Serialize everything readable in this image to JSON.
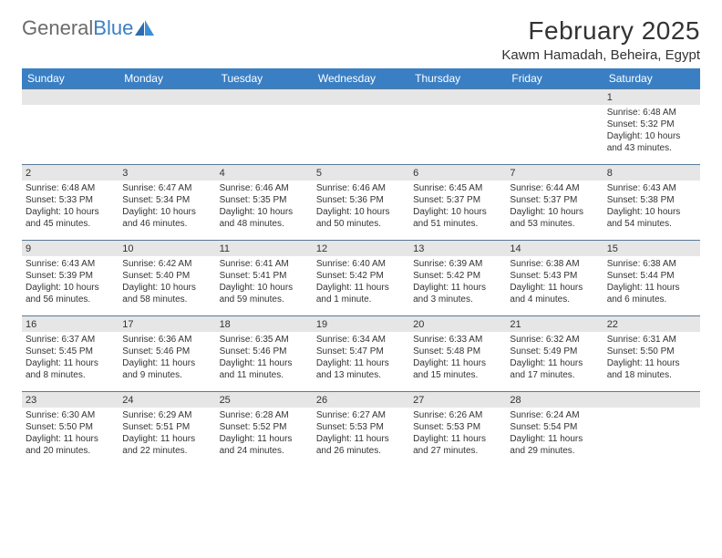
{
  "logo": {
    "text1": "General",
    "text2": "Blue"
  },
  "title": "February 2025",
  "location": "Kawm Hamadah, Beheira, Egypt",
  "colors": {
    "header_bg": "#3a7fc4",
    "header_text": "#ffffff",
    "daynum_bg": "#e6e6e6",
    "border": "#5a7a99",
    "body_text": "#333333",
    "logo_gray": "#6b6b6b",
    "logo_blue": "#3a7fc4"
  },
  "weekdays": [
    "Sunday",
    "Monday",
    "Tuesday",
    "Wednesday",
    "Thursday",
    "Friday",
    "Saturday"
  ],
  "weeks": [
    [
      {
        "n": "",
        "sr": "",
        "ss": "",
        "dl": ""
      },
      {
        "n": "",
        "sr": "",
        "ss": "",
        "dl": ""
      },
      {
        "n": "",
        "sr": "",
        "ss": "",
        "dl": ""
      },
      {
        "n": "",
        "sr": "",
        "ss": "",
        "dl": ""
      },
      {
        "n": "",
        "sr": "",
        "ss": "",
        "dl": ""
      },
      {
        "n": "",
        "sr": "",
        "ss": "",
        "dl": ""
      },
      {
        "n": "1",
        "sr": "Sunrise: 6:48 AM",
        "ss": "Sunset: 5:32 PM",
        "dl": "Daylight: 10 hours and 43 minutes."
      }
    ],
    [
      {
        "n": "2",
        "sr": "Sunrise: 6:48 AM",
        "ss": "Sunset: 5:33 PM",
        "dl": "Daylight: 10 hours and 45 minutes."
      },
      {
        "n": "3",
        "sr": "Sunrise: 6:47 AM",
        "ss": "Sunset: 5:34 PM",
        "dl": "Daylight: 10 hours and 46 minutes."
      },
      {
        "n": "4",
        "sr": "Sunrise: 6:46 AM",
        "ss": "Sunset: 5:35 PM",
        "dl": "Daylight: 10 hours and 48 minutes."
      },
      {
        "n": "5",
        "sr": "Sunrise: 6:46 AM",
        "ss": "Sunset: 5:36 PM",
        "dl": "Daylight: 10 hours and 50 minutes."
      },
      {
        "n": "6",
        "sr": "Sunrise: 6:45 AM",
        "ss": "Sunset: 5:37 PM",
        "dl": "Daylight: 10 hours and 51 minutes."
      },
      {
        "n": "7",
        "sr": "Sunrise: 6:44 AM",
        "ss": "Sunset: 5:37 PM",
        "dl": "Daylight: 10 hours and 53 minutes."
      },
      {
        "n": "8",
        "sr": "Sunrise: 6:43 AM",
        "ss": "Sunset: 5:38 PM",
        "dl": "Daylight: 10 hours and 54 minutes."
      }
    ],
    [
      {
        "n": "9",
        "sr": "Sunrise: 6:43 AM",
        "ss": "Sunset: 5:39 PM",
        "dl": "Daylight: 10 hours and 56 minutes."
      },
      {
        "n": "10",
        "sr": "Sunrise: 6:42 AM",
        "ss": "Sunset: 5:40 PM",
        "dl": "Daylight: 10 hours and 58 minutes."
      },
      {
        "n": "11",
        "sr": "Sunrise: 6:41 AM",
        "ss": "Sunset: 5:41 PM",
        "dl": "Daylight: 10 hours and 59 minutes."
      },
      {
        "n": "12",
        "sr": "Sunrise: 6:40 AM",
        "ss": "Sunset: 5:42 PM",
        "dl": "Daylight: 11 hours and 1 minute."
      },
      {
        "n": "13",
        "sr": "Sunrise: 6:39 AM",
        "ss": "Sunset: 5:42 PM",
        "dl": "Daylight: 11 hours and 3 minutes."
      },
      {
        "n": "14",
        "sr": "Sunrise: 6:38 AM",
        "ss": "Sunset: 5:43 PM",
        "dl": "Daylight: 11 hours and 4 minutes."
      },
      {
        "n": "15",
        "sr": "Sunrise: 6:38 AM",
        "ss": "Sunset: 5:44 PM",
        "dl": "Daylight: 11 hours and 6 minutes."
      }
    ],
    [
      {
        "n": "16",
        "sr": "Sunrise: 6:37 AM",
        "ss": "Sunset: 5:45 PM",
        "dl": "Daylight: 11 hours and 8 minutes."
      },
      {
        "n": "17",
        "sr": "Sunrise: 6:36 AM",
        "ss": "Sunset: 5:46 PM",
        "dl": "Daylight: 11 hours and 9 minutes."
      },
      {
        "n": "18",
        "sr": "Sunrise: 6:35 AM",
        "ss": "Sunset: 5:46 PM",
        "dl": "Daylight: 11 hours and 11 minutes."
      },
      {
        "n": "19",
        "sr": "Sunrise: 6:34 AM",
        "ss": "Sunset: 5:47 PM",
        "dl": "Daylight: 11 hours and 13 minutes."
      },
      {
        "n": "20",
        "sr": "Sunrise: 6:33 AM",
        "ss": "Sunset: 5:48 PM",
        "dl": "Daylight: 11 hours and 15 minutes."
      },
      {
        "n": "21",
        "sr": "Sunrise: 6:32 AM",
        "ss": "Sunset: 5:49 PM",
        "dl": "Daylight: 11 hours and 17 minutes."
      },
      {
        "n": "22",
        "sr": "Sunrise: 6:31 AM",
        "ss": "Sunset: 5:50 PM",
        "dl": "Daylight: 11 hours and 18 minutes."
      }
    ],
    [
      {
        "n": "23",
        "sr": "Sunrise: 6:30 AM",
        "ss": "Sunset: 5:50 PM",
        "dl": "Daylight: 11 hours and 20 minutes."
      },
      {
        "n": "24",
        "sr": "Sunrise: 6:29 AM",
        "ss": "Sunset: 5:51 PM",
        "dl": "Daylight: 11 hours and 22 minutes."
      },
      {
        "n": "25",
        "sr": "Sunrise: 6:28 AM",
        "ss": "Sunset: 5:52 PM",
        "dl": "Daylight: 11 hours and 24 minutes."
      },
      {
        "n": "26",
        "sr": "Sunrise: 6:27 AM",
        "ss": "Sunset: 5:53 PM",
        "dl": "Daylight: 11 hours and 26 minutes."
      },
      {
        "n": "27",
        "sr": "Sunrise: 6:26 AM",
        "ss": "Sunset: 5:53 PM",
        "dl": "Daylight: 11 hours and 27 minutes."
      },
      {
        "n": "28",
        "sr": "Sunrise: 6:24 AM",
        "ss": "Sunset: 5:54 PM",
        "dl": "Daylight: 11 hours and 29 minutes."
      },
      {
        "n": "",
        "sr": "",
        "ss": "",
        "dl": ""
      }
    ]
  ]
}
